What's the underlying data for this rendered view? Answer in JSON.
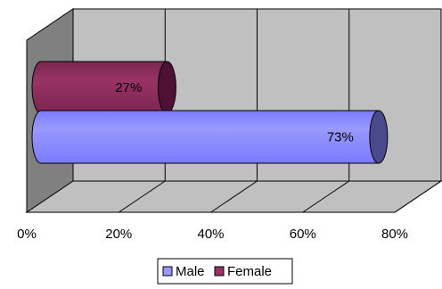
{
  "chart_data": {
    "type": "bar",
    "orientation": "horizontal",
    "three_d": true,
    "value_format": "percent",
    "xlim": [
      0,
      0.8
    ],
    "xticks": [
      0,
      0.2,
      0.4,
      0.6,
      0.8
    ],
    "xtick_labels": [
      "0%",
      "20%",
      "40%",
      "60%",
      "80%"
    ],
    "grid": true,
    "legend_position": "bottom",
    "series": [
      {
        "name": "Male",
        "value": 0.73,
        "label": "73%",
        "color": "#9999ff",
        "dark": "#4a4a8a",
        "shade": "#7a7aff"
      },
      {
        "name": "Female",
        "value": 0.27,
        "label": "27%",
        "color": "#993366",
        "dark": "#4d1233",
        "shade": "#7a2650"
      }
    ],
    "wall_color": "#c0c0c0",
    "side_wall_color": "#808080"
  }
}
